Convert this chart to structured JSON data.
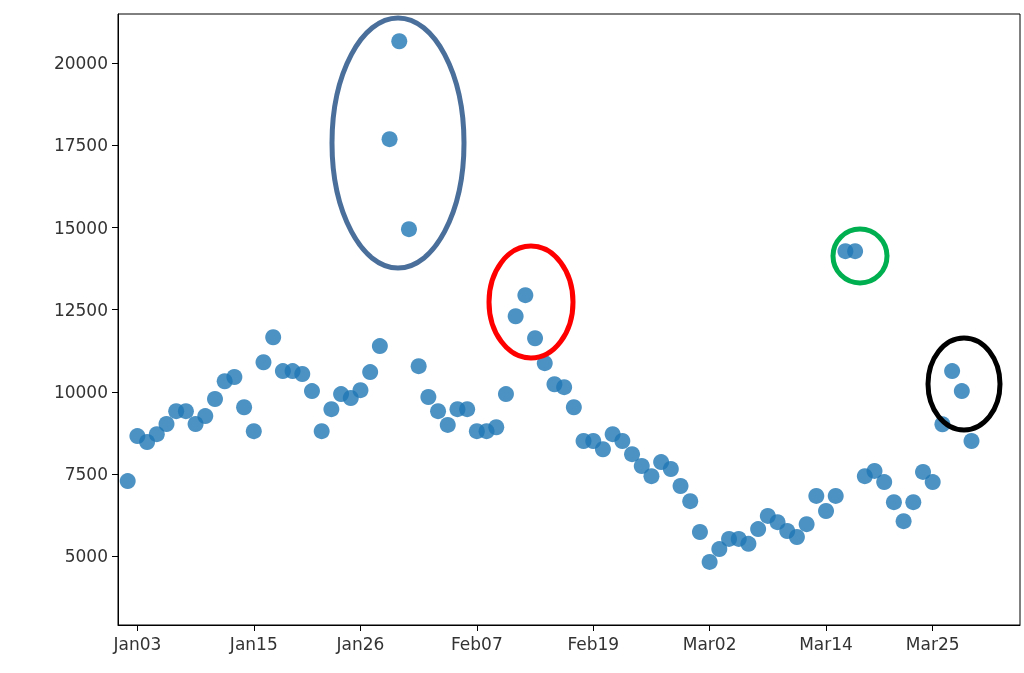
{
  "chart_data": {
    "type": "scatter",
    "marker": "circle",
    "color": "#1f77b4",
    "x": [
      "--01-02",
      "--01-03",
      "--01-04",
      "--01-05",
      "--01-06",
      "--01-07",
      "--01-08",
      "--01-09",
      "--01-10",
      "--01-11",
      "--01-12",
      "--01-13",
      "--01-14",
      "--01-15",
      "--01-16",
      "--01-17",
      "--01-18",
      "--01-19",
      "--01-20",
      "--01-21",
      "--01-22",
      "--01-23",
      "--01-24",
      "--01-25",
      "--01-26",
      "--01-27",
      "--01-28",
      "--01-29",
      "--01-30",
      "--01-31",
      "--02-01",
      "--02-02",
      "--02-03",
      "--02-04",
      "--02-05",
      "--02-06",
      "--02-07",
      "--02-08",
      "--02-09",
      "--02-10",
      "--02-11",
      "--02-12",
      "--02-13",
      "--02-14",
      "--02-15",
      "--02-16",
      "--02-17",
      "--02-18",
      "--02-19",
      "--02-20",
      "--02-21",
      "--02-22",
      "--02-23",
      "--02-24",
      "--02-25",
      "--02-26",
      "--02-27",
      "--02-28",
      "--02-29",
      "--03-01",
      "--03-02",
      "--03-03",
      "--03-04",
      "--03-05",
      "--03-06",
      "--03-07",
      "--03-08",
      "--03-09",
      "--03-10",
      "--03-11",
      "--03-12",
      "--03-13",
      "--03-14",
      "--03-15",
      "--03-16",
      "--03-17",
      "--03-18",
      "--03-19",
      "--03-20",
      "--03-21",
      "--03-22",
      "--03-23",
      "--03-24",
      "--03-25",
      "--03-26",
      "--03-27",
      "--03-28",
      "--03-29"
    ],
    "values": [
      7280,
      8650,
      8470,
      8710,
      9020,
      9410,
      9410,
      9020,
      9260,
      9780,
      10320,
      10450,
      9530,
      8800,
      10900,
      11660,
      10630,
      10630,
      10540,
      10020,
      8800,
      9470,
      9930,
      9810,
      10050,
      10600,
      11390,
      17690,
      20670,
      14950,
      10780,
      9840,
      9410,
      8990,
      9470,
      9470,
      8800,
      8800,
      8920,
      9930,
      12300,
      12940,
      11630,
      10870,
      10230,
      10140,
      9530,
      8500,
      8500,
      8250,
      8710,
      8500,
      8100,
      7740,
      7430,
      7860,
      7650,
      7130,
      6670,
      5730,
      4820,
      5210,
      5520,
      5520,
      5370,
      5820,
      6220,
      6030,
      5760,
      5580,
      5970,
      6830,
      6370,
      6830,
      14280,
      14280,
      7430,
      7590,
      7250,
      6640,
      6060,
      6640,
      7560,
      7250,
      9010,
      10630,
      10020,
      8500
    ],
    "xlim": [
      "--01-01",
      "--04-03"
    ],
    "xticks": [
      {
        "value": "--01-03",
        "label": "Jan03"
      },
      {
        "value": "--01-15",
        "label": "Jan15"
      },
      {
        "value": "--01-26",
        "label": "Jan26"
      },
      {
        "value": "--02-07",
        "label": "Feb07"
      },
      {
        "value": "--02-19",
        "label": "Feb19"
      },
      {
        "value": "--03-02",
        "label": "Mar02"
      },
      {
        "value": "--03-14",
        "label": "Mar14"
      },
      {
        "value": "--03-25",
        "label": "Mar25"
      }
    ],
    "ylim": [
      2900,
      21500
    ],
    "yticks": [
      5000,
      7500,
      10000,
      12500,
      15000,
      17500,
      20000
    ],
    "grid": false
  }
}
